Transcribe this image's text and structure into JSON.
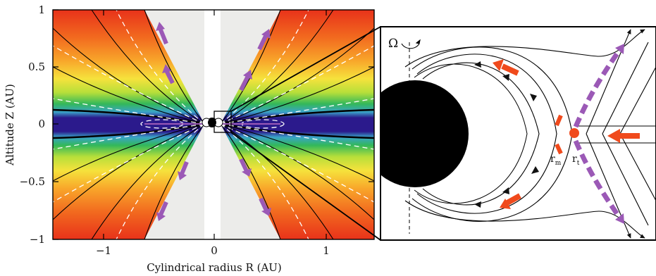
{
  "left_panel": {
    "xlabel": "Cylindrical radius R (AU)",
    "ylabel": "Altitude Z (AU)",
    "xticks": [
      "−1",
      "0",
      "1"
    ],
    "yticks": [
      "1",
      "0.5",
      "0",
      "−0.5",
      "−1"
    ]
  },
  "right_panel": {
    "omega_symbol": "Ω",
    "label_rm": "r",
    "label_rm_sub": "m",
    "label_rt": "r",
    "label_rt_sub": "t"
  },
  "colors": {
    "disk": "#2b1a8c",
    "gap": "#ececea",
    "flow_arrows": "#9b59b6",
    "accretion_arrows": "#f04a1c"
  },
  "icons": [
    "rotation-arrow-icon"
  ]
}
